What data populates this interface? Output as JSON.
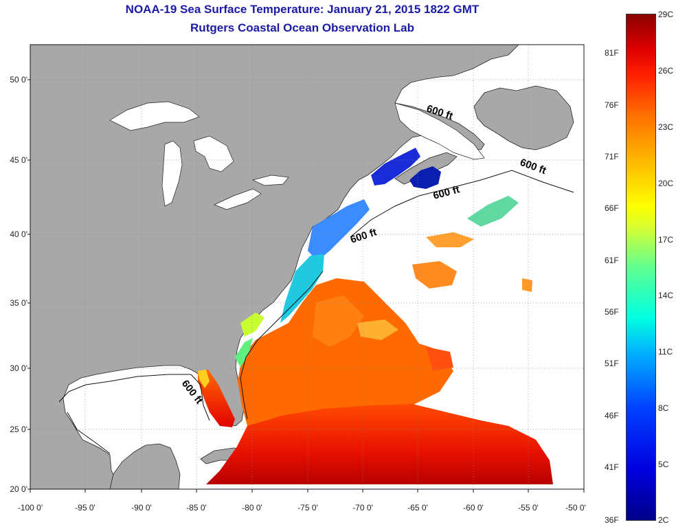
{
  "title": {
    "line1": "NOAA-19 Sea Surface Temperature:  January 21, 2015 1822 GMT",
    "line2": "Rutgers Coastal Ocean Observation Lab"
  },
  "map": {
    "lat_labels": [
      "50 0'",
      "45 0'",
      "40 0'",
      "35 0'",
      "30 0'",
      "25 0'",
      "20 0'"
    ],
    "lon_labels": [
      "-100 0'",
      "-95 0'",
      "-90 0'",
      "-85 0'",
      "-80 0'",
      "-75 0'",
      "-70 0'",
      "-65 0'",
      "-60 0'",
      "-55 0'",
      "-50 0'"
    ],
    "isobath_labels": [
      "600 ft",
      "600 ft",
      "600 ft",
      "600 ft",
      "600 ft"
    ],
    "colors": {
      "land": "#a8a8a8",
      "ocean_cloud": "#ffffff",
      "grid": "#888888"
    }
  },
  "colorbar": {
    "celsius": [
      "29C",
      "26C",
      "23C",
      "20C",
      "17C",
      "14C",
      "11C",
      "8C",
      "5C",
      "2C"
    ],
    "fahrenheit": [
      "81F",
      "76F",
      "71F",
      "66F",
      "61F",
      "56F",
      "51F",
      "46F",
      "41F",
      "36F"
    ]
  }
}
